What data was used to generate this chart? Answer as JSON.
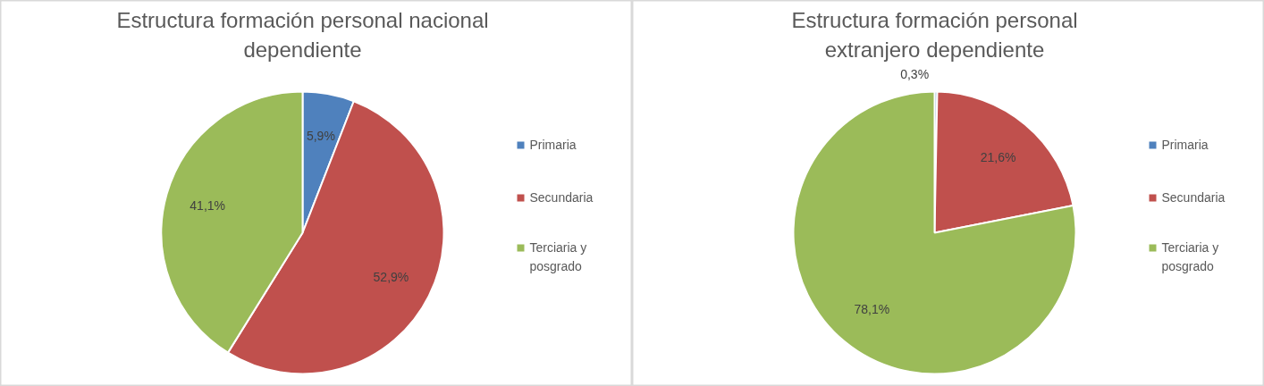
{
  "chart_data": [
    {
      "type": "pie",
      "title": "Estructura formación personal nacional dependiente",
      "categories": [
        "Primaria",
        "Secundaria",
        "Terciaria y posgrado"
      ],
      "values": [
        5.9,
        52.9,
        41.1
      ],
      "colors": [
        "#4f81bd",
        "#c0504d",
        "#9bbb59"
      ],
      "value_labels": [
        "5,9%",
        "52,9%",
        "41,1%"
      ],
      "legend": "right"
    },
    {
      "type": "pie",
      "title": "Estructura formación personal extranjero dependiente",
      "categories": [
        "Primaria",
        "Secundaria",
        "Terciaria y posgrado"
      ],
      "values": [
        0.3,
        21.6,
        78.1
      ],
      "colors": [
        "#4f81bd",
        "#c0504d",
        "#9bbb59"
      ],
      "value_labels": [
        "0,3%",
        "21,6%",
        "78,1%"
      ],
      "legend": "right"
    }
  ]
}
